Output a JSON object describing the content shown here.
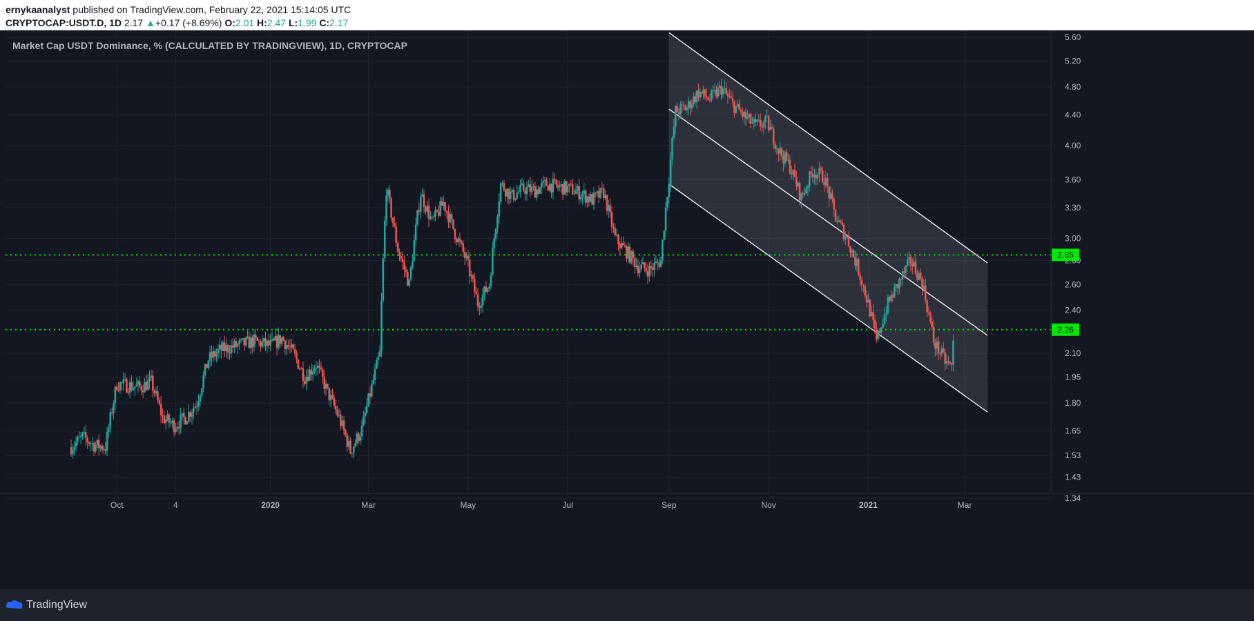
{
  "header": {
    "author": "ernykaanalyst",
    "published": "published on TradingView.com, February 22, 2021 15:14:05 UTC",
    "symbol": "CRYPTOCAP:USDT.D, 1D",
    "last": "2.17",
    "change": "+0.17 (+8.69%)",
    "o_label": "O:",
    "o_val": "2.01",
    "h_label": "H:",
    "h_val": "2.47",
    "l_label": "L:",
    "l_val": "1.99",
    "c_label": "C:",
    "c_val": "2.17"
  },
  "footer": {
    "brand": "TradingView"
  },
  "colors": {
    "up": "#26a69a",
    "down": "#ef5350",
    "level": "#00e600",
    "bg": "#131722",
    "channel": "#ffffff"
  },
  "chart_data": {
    "type": "candlestick",
    "title": "Market Cap USDT Dominance, % (CALCULATED BY TRADINGVIEW), 1D, CRYPTOCAP",
    "scale": "log",
    "ylim": [
      1.36,
      5.72
    ],
    "y_ticks": [
      "5.60",
      "5.20",
      "4.80",
      "4.40",
      "4.00",
      "3.60",
      "3.30",
      "3.00",
      "2.80",
      "2.60",
      "2.40",
      "2.10",
      "1.95",
      "1.80",
      "1.65",
      "1.53",
      "1.43",
      "1.34"
    ],
    "x_ticks": [
      "Oct",
      "4",
      "2020",
      "Mar",
      "May",
      "Jul",
      "Sep",
      "Nov",
      "2021",
      "Mar"
    ],
    "grid": true,
    "horizontal_levels": [
      {
        "value": 2.85,
        "label": "2.85"
      },
      {
        "value": 2.26,
        "label": "2.26"
      }
    ],
    "channel": {
      "upper_start": {
        "date": "2020-09-01",
        "value": 5.68
      },
      "upper_end": {
        "date": "2021-03-15",
        "value": 2.78
      },
      "middle_start": {
        "date": "2020-09-01",
        "value": 4.48
      },
      "middle_end": {
        "date": "2021-03-15",
        "value": 2.22
      },
      "lower_start": {
        "date": "2020-09-01",
        "value": 3.55
      },
      "lower_end": {
        "date": "2021-03-15",
        "value": 1.75
      }
    },
    "price_path": [
      [
        "2019-09-01",
        1.57
      ],
      [
        "2019-09-08",
        1.62
      ],
      [
        "2019-09-15",
        1.58
      ],
      [
        "2019-09-22",
        1.57
      ],
      [
        "2019-09-29",
        1.91
      ],
      [
        "2019-10-06",
        1.9
      ],
      [
        "2019-10-13",
        1.89
      ],
      [
        "2019-10-20",
        1.92
      ],
      [
        "2019-10-27",
        1.72
      ],
      [
        "2019-11-03",
        1.68
      ],
      [
        "2019-11-10",
        1.72
      ],
      [
        "2019-11-17",
        1.8
      ],
      [
        "2019-11-24",
        2.06
      ],
      [
        "2019-12-01",
        2.12
      ],
      [
        "2019-12-08",
        2.14
      ],
      [
        "2019-12-15",
        2.16
      ],
      [
        "2019-12-22",
        2.18
      ],
      [
        "2020-01-01",
        2.15
      ],
      [
        "2020-01-08",
        2.2
      ],
      [
        "2020-01-15",
        2.1
      ],
      [
        "2020-01-22",
        1.95
      ],
      [
        "2020-01-29",
        2.03
      ],
      [
        "2020-02-05",
        1.86
      ],
      [
        "2020-02-12",
        1.72
      ],
      [
        "2020-02-19",
        1.55
      ],
      [
        "2020-02-26",
        1.66
      ],
      [
        "2020-03-04",
        1.93
      ],
      [
        "2020-03-08",
        2.1
      ],
      [
        "2020-03-12",
        3.5
      ],
      [
        "2020-03-19",
        2.9
      ],
      [
        "2020-03-26",
        2.6
      ],
      [
        "2020-04-02",
        3.45
      ],
      [
        "2020-04-09",
        3.15
      ],
      [
        "2020-04-16",
        3.35
      ],
      [
        "2020-04-23",
        3.05
      ],
      [
        "2020-04-30",
        2.8
      ],
      [
        "2020-05-07",
        2.45
      ],
      [
        "2020-05-14",
        2.6
      ],
      [
        "2020-05-21",
        3.55
      ],
      [
        "2020-05-28",
        3.42
      ],
      [
        "2020-06-04",
        3.5
      ],
      [
        "2020-06-11",
        3.48
      ],
      [
        "2020-06-18",
        3.55
      ],
      [
        "2020-06-25",
        3.52
      ],
      [
        "2020-07-02",
        3.5
      ],
      [
        "2020-07-09",
        3.45
      ],
      [
        "2020-07-16",
        3.38
      ],
      [
        "2020-07-23",
        3.46
      ],
      [
        "2020-07-30",
        3.0
      ],
      [
        "2020-08-06",
        2.88
      ],
      [
        "2020-08-13",
        2.75
      ],
      [
        "2020-08-20",
        2.72
      ],
      [
        "2020-08-27",
        2.8
      ],
      [
        "2020-09-01",
        3.62
      ],
      [
        "2020-09-05",
        4.45
      ],
      [
        "2020-09-12",
        4.5
      ],
      [
        "2020-09-19",
        4.72
      ],
      [
        "2020-09-26",
        4.62
      ],
      [
        "2020-10-03",
        4.78
      ],
      [
        "2020-10-10",
        4.55
      ],
      [
        "2020-10-17",
        4.38
      ],
      [
        "2020-10-24",
        4.25
      ],
      [
        "2020-10-31",
        4.3
      ],
      [
        "2020-11-07",
        3.95
      ],
      [
        "2020-11-14",
        3.75
      ],
      [
        "2020-11-21",
        3.4
      ],
      [
        "2020-11-28",
        3.7
      ],
      [
        "2020-12-05",
        3.62
      ],
      [
        "2020-12-12",
        3.2
      ],
      [
        "2020-12-19",
        3.0
      ],
      [
        "2020-12-26",
        2.72
      ],
      [
        "2021-01-02",
        2.4
      ],
      [
        "2021-01-06",
        2.18
      ],
      [
        "2021-01-13",
        2.45
      ],
      [
        "2021-01-20",
        2.62
      ],
      [
        "2021-01-27",
        2.8
      ],
      [
        "2021-02-03",
        2.62
      ],
      [
        "2021-02-10",
        2.18
      ],
      [
        "2021-02-17",
        2.05
      ],
      [
        "2021-02-21",
        2.01
      ],
      [
        "2021-02-22",
        2.17
      ]
    ]
  }
}
